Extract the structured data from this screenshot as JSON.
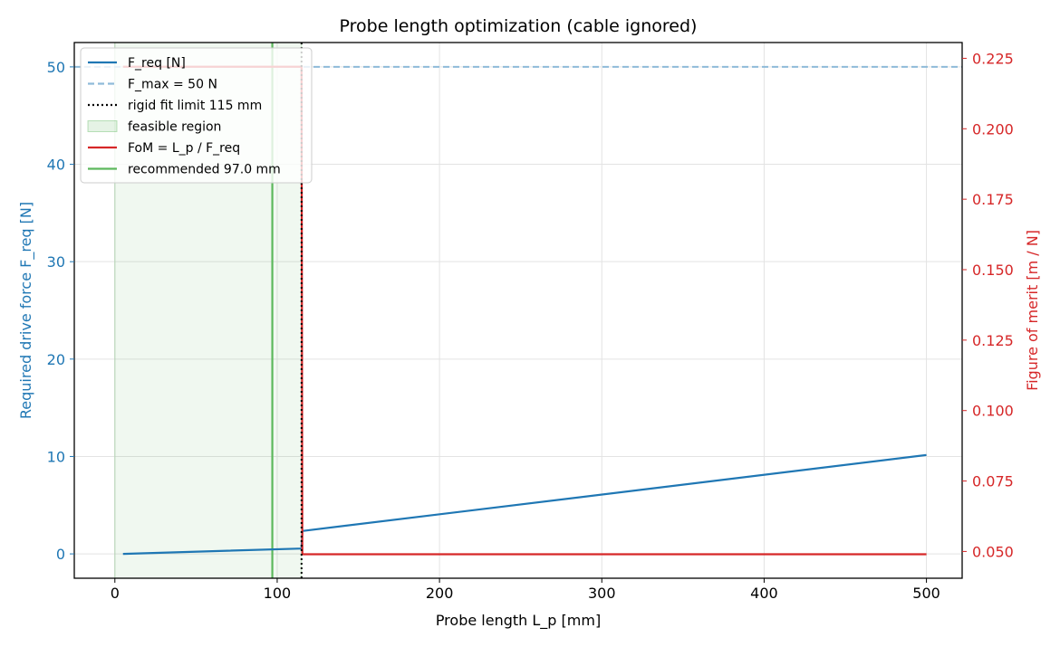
{
  "chart_data": {
    "type": "line",
    "title": "Probe length optimization (cable ignored)",
    "xlabel": "Probe length L_p [mm]",
    "ylabel": "Required drive force F_req [N]",
    "ylabel_right": "Figure of merit  [m / N]",
    "xlim": [
      -25,
      522
    ],
    "ylim": [
      -2.5,
      52.5
    ],
    "ylim_right": [
      0.0405,
      0.2306
    ],
    "x_ticks": [
      0,
      100,
      200,
      300,
      400,
      500
    ],
    "x_tick_labels": [
      "0",
      "100",
      "200",
      "300",
      "400",
      "500"
    ],
    "y_ticks": [
      0,
      10,
      20,
      30,
      40,
      50
    ],
    "y_tick_labels": [
      "0",
      "10",
      "20",
      "30",
      "40",
      "50"
    ],
    "y_right_ticks": [
      0.05,
      0.075,
      0.1,
      0.125,
      0.15,
      0.175,
      0.2,
      0.225
    ],
    "y_right_tick_labels": [
      "0.050",
      "0.075",
      "0.100",
      "0.125",
      "0.150",
      "0.175",
      "0.200",
      "0.225"
    ],
    "grid": true,
    "legend_position": "top-left",
    "colors": {
      "f_req": "#1f77b4",
      "f_max": "#8fbbd9",
      "fom": "#d62728",
      "recommended": "#5cb85c",
      "feasible": "#2ca02c",
      "rigid": "#000000",
      "axis_left": "#1f77b4",
      "axis_right": "#d62728"
    },
    "series": [
      {
        "name": "F_req [N]",
        "axis": "left",
        "x": [
          5,
          115,
          115.5,
          500
        ],
        "y": [
          0.0,
          0.55,
          2.35,
          10.15
        ]
      },
      {
        "name": "FoM = L_p / F_req",
        "axis": "right",
        "x": [
          5,
          115,
          115.5,
          500
        ],
        "y": [
          0.222,
          0.222,
          0.049,
          0.049
        ]
      }
    ],
    "reference_lines": {
      "f_max": {
        "label": "F_max = 50 N",
        "value": 50
      },
      "rigid_fit_limit": {
        "label": "rigid fit limit 115 mm",
        "value": 115
      },
      "recommended": {
        "label": "recommended 97.0 mm",
        "value": 97.0
      }
    },
    "feasible_region": {
      "label": "feasible region",
      "x": [
        0,
        115
      ]
    },
    "legend": [
      {
        "label": "F_req [N]",
        "key": "f_req",
        "style": "solid"
      },
      {
        "label": "F_max = 50 N",
        "key": "f_max",
        "style": "dashed"
      },
      {
        "label": "rigid fit limit 115 mm",
        "key": "rigid",
        "style": "dotted"
      },
      {
        "label": "feasible region",
        "key": "feasible",
        "style": "patch"
      },
      {
        "label": "FoM = L_p / F_req",
        "key": "fom",
        "style": "solid"
      },
      {
        "label": "recommended 97.0 mm",
        "key": "recommended",
        "style": "solid"
      }
    ]
  }
}
